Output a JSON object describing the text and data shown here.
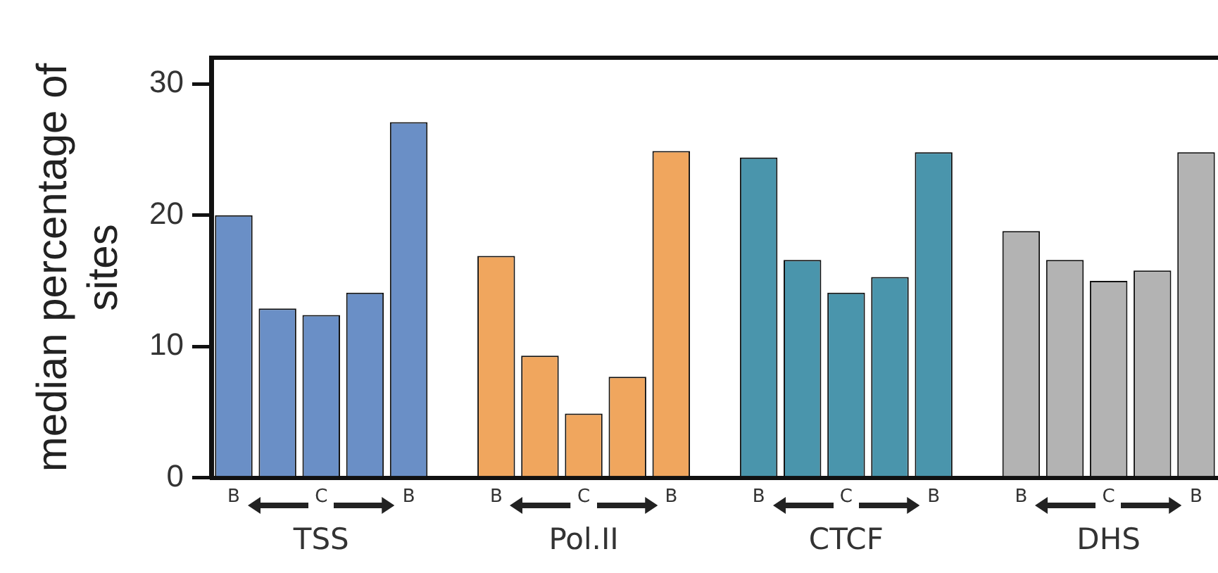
{
  "chart_data": {
    "type": "bar",
    "ylabel": "median percentage of sites",
    "categories": [
      "B",
      null,
      "C",
      null,
      "B",
      null,
      "B",
      null,
      "C",
      null,
      "B",
      null,
      "B",
      null,
      "C",
      null,
      "B",
      null,
      "B",
      null,
      "C",
      null,
      "B"
    ],
    "series": [
      {
        "name": "TSS",
        "color": "#6a8fc6",
        "values": [
          20,
          12.9,
          12.4,
          14.1,
          27.1,
          null,
          null,
          null,
          null,
          null,
          null,
          null,
          null,
          null,
          null,
          null,
          null,
          null,
          null,
          null,
          null,
          null,
          null
        ]
      },
      {
        "name": "Pol.II",
        "color": "#f0a65e",
        "values": [
          null,
          null,
          null,
          null,
          null,
          null,
          16.9,
          9.3,
          4.9,
          7.7,
          24.9,
          null,
          null,
          null,
          null,
          null,
          null,
          null,
          null,
          null,
          null,
          null,
          null
        ]
      },
      {
        "name": "CTCF",
        "color": "#4a95ac",
        "values": [
          null,
          null,
          null,
          null,
          null,
          null,
          null,
          null,
          null,
          null,
          null,
          null,
          24.4,
          16.6,
          14.1,
          15.3,
          24.8,
          null,
          null,
          null,
          null,
          null,
          null
        ]
      },
      {
        "name": "DHS",
        "color": "#b3b3b3",
        "values": [
          null,
          null,
          null,
          null,
          null,
          null,
          null,
          null,
          null,
          null,
          null,
          null,
          null,
          null,
          null,
          null,
          null,
          null,
          18.8,
          16.6,
          15.0,
          15.8,
          24.8
        ]
      }
    ],
    "ylim": [
      0,
      32
    ],
    "yticks": [
      0,
      10,
      20,
      30
    ],
    "grid": false,
    "legend": false
  }
}
